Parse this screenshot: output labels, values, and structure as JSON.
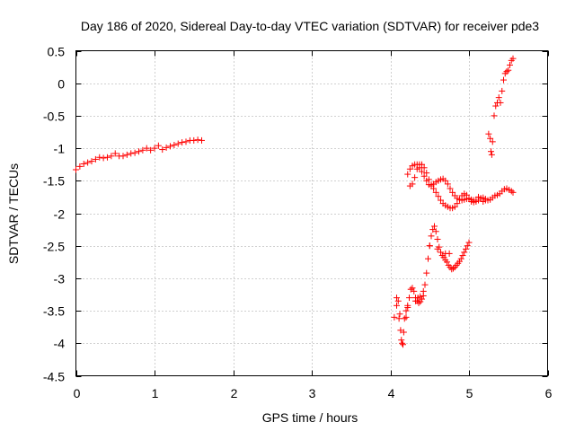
{
  "chart_data": {
    "type": "scatter",
    "title": "Day 186 of 2020, Sidereal Day-to-day VTEC variation (SDTVAR) for receiver pde3",
    "xlabel": "GPS time / hours",
    "ylabel": "SDTVAR / TECUs",
    "xlim": [
      0,
      6
    ],
    "ylim": [
      -4.5,
      0.5
    ],
    "xticks": [
      0,
      1,
      2,
      3,
      4,
      5,
      6
    ],
    "yticks": [
      0.5,
      0,
      -0.5,
      -1,
      -1.5,
      -2,
      -2.5,
      -3,
      -3.5,
      -4,
      -4.5
    ],
    "xtick_labels": [
      "0",
      "1",
      "2",
      "3",
      "4",
      "5",
      "6"
    ],
    "ytick_labels": [
      "0.5",
      "0",
      "-0.5",
      "-1",
      "-1.5",
      "-2",
      "-2.5",
      "-3",
      "-3.5",
      "-4",
      "-4.5"
    ],
    "grid": true,
    "marker": "+",
    "color": "#ff0000",
    "series": [
      {
        "name": "arc-1",
        "points": [
          [
            0.0,
            -1.33
          ],
          [
            0.05,
            -1.28
          ],
          [
            0.1,
            -1.24
          ],
          [
            0.15,
            -1.22
          ],
          [
            0.2,
            -1.2
          ],
          [
            0.25,
            -1.17
          ],
          [
            0.3,
            -1.14
          ],
          [
            0.35,
            -1.15
          ],
          [
            0.4,
            -1.14
          ],
          [
            0.45,
            -1.12
          ],
          [
            0.5,
            -1.08
          ],
          [
            0.55,
            -1.12
          ],
          [
            0.6,
            -1.12
          ],
          [
            0.65,
            -1.1
          ],
          [
            0.7,
            -1.08
          ],
          [
            0.75,
            -1.07
          ],
          [
            0.8,
            -1.05
          ],
          [
            0.85,
            -1.03
          ],
          [
            0.9,
            -1.0
          ],
          [
            0.95,
            -1.03
          ],
          [
            1.0,
            -1.0
          ],
          [
            1.05,
            -0.96
          ],
          [
            1.1,
            -1.02
          ],
          [
            1.15,
            -0.99
          ],
          [
            1.2,
            -0.97
          ],
          [
            1.25,
            -0.95
          ],
          [
            1.3,
            -0.93
          ],
          [
            1.35,
            -0.91
          ],
          [
            1.4,
            -0.9
          ],
          [
            1.45,
            -0.88
          ],
          [
            1.5,
            -0.88
          ],
          [
            1.55,
            -0.87
          ],
          [
            1.6,
            -0.88
          ]
        ]
      },
      {
        "name": "arc-2",
        "points": [
          [
            4.22,
            -1.4
          ],
          [
            4.25,
            -1.32
          ],
          [
            4.28,
            -1.27
          ],
          [
            4.31,
            -1.25
          ],
          [
            4.34,
            -1.25
          ],
          [
            4.37,
            -1.3
          ],
          [
            4.4,
            -1.36
          ],
          [
            4.43,
            -1.43
          ],
          [
            4.46,
            -1.5
          ],
          [
            4.49,
            -1.56
          ],
          [
            4.52,
            -1.58
          ],
          [
            4.55,
            -1.55
          ],
          [
            4.58,
            -1.52
          ],
          [
            4.61,
            -1.5
          ],
          [
            4.64,
            -1.48
          ],
          [
            4.67,
            -1.47
          ],
          [
            4.7,
            -1.5
          ],
          [
            4.73,
            -1.55
          ],
          [
            4.76,
            -1.62
          ],
          [
            4.79,
            -1.68
          ],
          [
            4.82,
            -1.73
          ],
          [
            4.85,
            -1.77
          ],
          [
            4.88,
            -1.79
          ],
          [
            4.91,
            -1.8
          ],
          [
            4.94,
            -1.79
          ],
          [
            4.97,
            -1.78
          ],
          [
            5.0,
            -1.77
          ],
          [
            5.03,
            -1.79
          ],
          [
            5.06,
            -1.8
          ],
          [
            5.09,
            -1.82
          ],
          [
            5.12,
            -1.8
          ],
          [
            5.15,
            -1.77
          ],
          [
            5.18,
            -1.76
          ],
          [
            5.21,
            -1.78
          ],
          [
            5.24,
            -1.8
          ],
          [
            5.27,
            -1.79
          ],
          [
            5.3,
            -1.76
          ],
          [
            5.33,
            -1.73
          ],
          [
            5.36,
            -1.72
          ],
          [
            5.39,
            -1.7
          ],
          [
            5.42,
            -1.66
          ],
          [
            5.45,
            -1.63
          ],
          [
            5.48,
            -1.62
          ],
          [
            5.51,
            -1.64
          ],
          [
            5.54,
            -1.66
          ],
          [
            5.56,
            -1.68
          ]
        ]
      },
      {
        "name": "arc-3",
        "points": [
          [
            4.25,
            -1.58
          ],
          [
            4.28,
            -1.55
          ],
          [
            4.31,
            -1.45
          ],
          [
            4.34,
            -1.32
          ],
          [
            4.37,
            -1.25
          ],
          [
            4.4,
            -1.25
          ],
          [
            4.43,
            -1.3
          ],
          [
            4.46,
            -1.38
          ],
          [
            4.49,
            -1.48
          ],
          [
            4.52,
            -1.56
          ],
          [
            4.55,
            -1.62
          ],
          [
            4.58,
            -1.68
          ],
          [
            4.61,
            -1.74
          ],
          [
            4.64,
            -1.8
          ],
          [
            4.67,
            -1.85
          ],
          [
            4.7,
            -1.88
          ],
          [
            4.73,
            -1.9
          ],
          [
            4.76,
            -1.92
          ],
          [
            4.79,
            -1.92
          ],
          [
            4.82,
            -1.9
          ],
          [
            4.85,
            -1.85
          ],
          [
            4.88,
            -1.79
          ],
          [
            4.91,
            -1.73
          ],
          [
            4.94,
            -1.7
          ],
          [
            4.97,
            -1.72
          ],
          [
            5.0,
            -1.78
          ],
          [
            5.03,
            -1.82
          ],
          [
            5.06,
            -1.83
          ],
          [
            5.09,
            -1.8
          ],
          [
            5.12,
            -1.75
          ],
          [
            5.15,
            -1.77
          ],
          [
            5.18,
            -1.82
          ],
          [
            5.21,
            -1.8
          ]
        ]
      },
      {
        "name": "arc-4",
        "points": [
          [
            4.08,
            -3.3
          ],
          [
            4.1,
            -3.35
          ],
          [
            4.12,
            -3.55
          ],
          [
            4.13,
            -3.8
          ],
          [
            4.14,
            -3.95
          ],
          [
            4.15,
            -4.0
          ],
          [
            4.16,
            -4.02
          ],
          [
            4.17,
            -3.83
          ],
          [
            4.18,
            -3.62
          ],
          [
            4.2,
            -3.5
          ],
          [
            4.22,
            -3.42
          ],
          [
            4.24,
            -3.3
          ],
          [
            4.26,
            -3.17
          ],
          [
            4.28,
            -3.15
          ],
          [
            4.3,
            -3.2
          ],
          [
            4.32,
            -3.3
          ],
          [
            4.34,
            -3.35
          ],
          [
            4.36,
            -3.38
          ],
          [
            4.38,
            -3.36
          ],
          [
            4.4,
            -3.32
          ],
          [
            4.42,
            -3.27
          ],
          [
            4.44,
            -3.1
          ],
          [
            4.46,
            -2.92
          ],
          [
            4.48,
            -2.7
          ],
          [
            4.5,
            -2.5
          ],
          [
            4.52,
            -2.35
          ],
          [
            4.54,
            -2.25
          ],
          [
            4.56,
            -2.2
          ],
          [
            4.58,
            -2.28
          ],
          [
            4.6,
            -2.4
          ],
          [
            4.62,
            -2.52
          ],
          [
            4.64,
            -2.6
          ],
          [
            4.66,
            -2.65
          ],
          [
            4.68,
            -2.68
          ],
          [
            4.7,
            -2.72
          ],
          [
            4.72,
            -2.75
          ],
          [
            4.74,
            -2.8
          ],
          [
            4.76,
            -2.83
          ],
          [
            4.78,
            -2.86
          ],
          [
            4.8,
            -2.85
          ],
          [
            4.82,
            -2.83
          ],
          [
            4.84,
            -2.8
          ],
          [
            4.86,
            -2.77
          ],
          [
            4.88,
            -2.74
          ],
          [
            4.9,
            -2.7
          ],
          [
            4.92,
            -2.65
          ],
          [
            4.94,
            -2.6
          ],
          [
            4.96,
            -2.55
          ],
          [
            4.98,
            -2.5
          ],
          [
            5.0,
            -2.45
          ]
        ]
      },
      {
        "name": "arc-5",
        "points": [
          [
            4.05,
            -3.6
          ],
          [
            4.08,
            -3.42
          ],
          [
            4.11,
            -3.62
          ],
          [
            4.2,
            -3.6
          ],
          [
            4.22,
            -3.45
          ],
          [
            4.32,
            -3.35
          ],
          [
            4.35,
            -3.3
          ],
          [
            4.38,
            -3.28
          ],
          [
            4.42,
            -3.2
          ],
          [
            4.5,
            -2.5
          ],
          [
            4.6,
            -2.55
          ],
          [
            4.7,
            -2.62
          ],
          [
            4.75,
            -2.62
          ]
        ]
      },
      {
        "name": "arc-6",
        "points": [
          [
            5.25,
            -0.78
          ],
          [
            5.27,
            -0.85
          ],
          [
            5.28,
            -1.05
          ],
          [
            5.29,
            -1.1
          ],
          [
            5.3,
            -0.9
          ],
          [
            5.32,
            -0.5
          ],
          [
            5.34,
            -0.35
          ],
          [
            5.36,
            -0.3
          ],
          [
            5.38,
            -0.22
          ],
          [
            5.4,
            -0.3
          ],
          [
            5.42,
            -0.12
          ],
          [
            5.44,
            0.05
          ],
          [
            5.46,
            0.15
          ],
          [
            5.48,
            0.18
          ],
          [
            5.5,
            0.2
          ],
          [
            5.52,
            0.28
          ],
          [
            5.54,
            0.35
          ],
          [
            5.56,
            0.38
          ]
        ]
      }
    ]
  }
}
